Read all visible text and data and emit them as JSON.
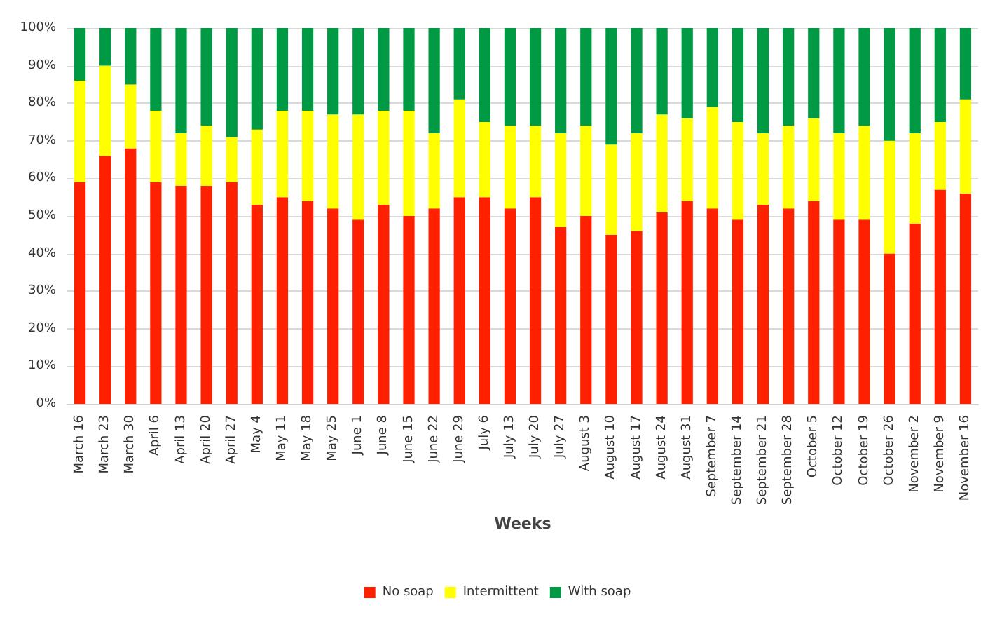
{
  "chart_data": {
    "type": "bar",
    "stacked": true,
    "xlabel": "Weeks",
    "categories": [
      "March 16",
      "March 23",
      "March 30",
      "April 6",
      "April 13",
      "April 20",
      "April 27",
      "May 4",
      "May 11",
      "May 18",
      "May 25",
      "June 1",
      "June 8",
      "June 15",
      "June 22",
      "June 29",
      "July 6",
      "July 13",
      "July 20",
      "July 27",
      "August 3",
      "August 10",
      "August 17",
      "August 24",
      "August 31",
      "September 7",
      "September 14",
      "September 21",
      "September 28",
      "October 5",
      "October 12",
      "October 19",
      "October 26",
      "November 2",
      "November 9",
      "November 16"
    ],
    "series": [
      {
        "name": "No soap",
        "color": "#ff2000",
        "values": [
          59,
          66,
          68,
          59,
          58,
          58,
          59,
          53,
          55,
          54,
          52,
          49,
          53,
          50,
          52,
          55,
          55,
          52,
          55,
          47,
          50,
          45,
          46,
          51,
          54,
          52,
          49,
          53,
          52,
          54,
          49,
          49,
          40,
          48,
          57,
          56
        ]
      },
      {
        "name": "Intermittent",
        "color": "#ffff00",
        "values": [
          27,
          24,
          17,
          19,
          14,
          16,
          12,
          20,
          23,
          24,
          25,
          28,
          25,
          28,
          20,
          26,
          20,
          22,
          19,
          25,
          24,
          24,
          26,
          26,
          22,
          27,
          26,
          19,
          22,
          22,
          23,
          25,
          30,
          24,
          18,
          25
        ]
      },
      {
        "name": "With soap",
        "color": "#009a44",
        "values": [
          14,
          10,
          15,
          22,
          28,
          26,
          29,
          27,
          22,
          22,
          23,
          23,
          22,
          22,
          28,
          19,
          25,
          26,
          26,
          28,
          26,
          31,
          28,
          23,
          24,
          21,
          25,
          28,
          26,
          24,
          28,
          26,
          30,
          28,
          25,
          19
        ]
      }
    ],
    "ylim": [
      0,
      100
    ],
    "yticks": [
      {
        "value": 0,
        "label": "0%"
      },
      {
        "value": 10,
        "label": "10%"
      },
      {
        "value": 20,
        "label": "20%"
      },
      {
        "value": 30,
        "label": "30%"
      },
      {
        "value": 40,
        "label": "40%"
      },
      {
        "value": 50,
        "label": "50%"
      },
      {
        "value": 60,
        "label": "60%"
      },
      {
        "value": 70,
        "label": "70%"
      },
      {
        "value": 80,
        "label": "80%"
      },
      {
        "value": 90,
        "label": "90%"
      },
      {
        "value": 100,
        "label": "100%"
      }
    ],
    "grid": "y",
    "legend": "bottom"
  }
}
